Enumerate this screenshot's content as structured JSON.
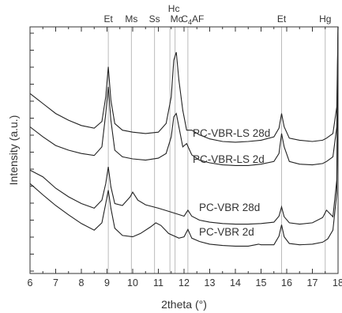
{
  "chart_data": {
    "type": "line",
    "xlabel": "2theta (°)",
    "ylabel": "Intensity (a.u.)",
    "xlim": [
      6,
      18
    ],
    "x_ticks": [
      "6",
      "7",
      "8",
      "9",
      "10",
      "11",
      "12",
      "13",
      "14",
      "15",
      "16",
      "17",
      "18"
    ],
    "grid": false,
    "legend": "none",
    "colors": {
      "axis": "#333333",
      "curve": "#222222",
      "reference_line": "#bbbbbb"
    },
    "reference_lines": [
      {
        "label": "Et",
        "x": 9.05
      },
      {
        "label": "Ms",
        "x": 9.95
      },
      {
        "label": "Ss",
        "x": 10.85
      },
      {
        "label": "Hc",
        "x": 11.45
      },
      {
        "label": "Mc",
        "x": 11.65
      },
      {
        "label": "C4AF",
        "x": 12.15
      },
      {
        "label": "Et",
        "x": 15.8
      },
      {
        "label": "Hg",
        "x": 17.5
      }
    ],
    "series": [
      {
        "name": "PC-VBR-LS 28d",
        "x": [
          6,
          6.5,
          7,
          7.5,
          8,
          8.5,
          8.8,
          8.95,
          9.05,
          9.15,
          9.3,
          9.6,
          10,
          10.5,
          11,
          11.3,
          11.5,
          11.6,
          11.7,
          11.8,
          11.95,
          12.1,
          12.3,
          12.6,
          13,
          13.5,
          14,
          14.5,
          15,
          15.5,
          15.7,
          15.8,
          15.9,
          16.1,
          16.5,
          17,
          17.4,
          17.55,
          17.8,
          17.95,
          18
        ],
        "y": [
          35,
          33.5,
          32,
          31,
          30.2,
          29.8,
          30.8,
          34.5,
          39,
          34,
          30.5,
          29.5,
          29.2,
          29,
          29.2,
          30.5,
          34.5,
          40,
          41.2,
          37,
          32.5,
          29.5,
          29.5,
          28.8,
          28.2,
          27.8,
          27.7,
          27.8,
          28,
          28.5,
          29.8,
          32,
          30,
          28.3,
          28,
          27.8,
          28,
          28.3,
          29,
          33,
          45
        ]
      },
      {
        "name": "PC-VBR-LS 2d",
        "x": [
          6,
          6.5,
          7,
          7.5,
          8,
          8.5,
          8.8,
          8.95,
          9.05,
          9.15,
          9.3,
          9.6,
          10,
          10.5,
          11,
          11.3,
          11.5,
          11.6,
          11.7,
          11.8,
          11.95,
          12.1,
          12.3,
          12.6,
          13,
          13.5,
          14,
          14.5,
          15,
          15.5,
          15.7,
          15.8,
          15.9,
          16.1,
          16.5,
          17,
          17.4,
          17.55,
          17.8,
          17.95,
          18
        ],
        "y": [
          30,
          28.5,
          27.2,
          26.5,
          26,
          25.7,
          27,
          32,
          36,
          31,
          26.5,
          25.5,
          25.2,
          25,
          25.3,
          26,
          28.5,
          31.5,
          32,
          30,
          27,
          27.5,
          25.8,
          25,
          24.6,
          24.3,
          24.2,
          24.2,
          24.4,
          24.8,
          26,
          29,
          27,
          24.8,
          24.4,
          24.3,
          24.5,
          24.8,
          25.5,
          30,
          45
        ]
      },
      {
        "name": "PC-VBR 28d",
        "x": [
          6,
          6.5,
          7,
          7.5,
          8,
          8.5,
          8.8,
          8.95,
          9.05,
          9.15,
          9.3,
          9.6,
          9.9,
          10,
          10.2,
          10.5,
          11,
          11.5,
          12,
          12.15,
          12.3,
          12.6,
          13,
          13.5,
          14,
          14.5,
          15,
          15.5,
          15.7,
          15.8,
          15.9,
          16.1,
          16.5,
          17,
          17.4,
          17.55,
          17.8,
          17.95,
          18
        ],
        "y": [
          23.5,
          22.5,
          20.8,
          19.5,
          18.5,
          17.8,
          19,
          21.5,
          24,
          21,
          18.5,
          18.2,
          19.5,
          20.2,
          19,
          18.3,
          17.8,
          17.2,
          16.6,
          17.5,
          16.6,
          16,
          15.7,
          15.5,
          15.4,
          15.4,
          15.5,
          15.7,
          16.6,
          18,
          16.5,
          15.6,
          15.4,
          15.6,
          16.4,
          17.5,
          16.5,
          22,
          45
        ]
      },
      {
        "name": "PC-VBR 2d",
        "x": [
          6,
          6.5,
          7,
          7.5,
          8,
          8.5,
          8.8,
          8.95,
          9.05,
          9.15,
          9.3,
          9.6,
          10,
          10.3,
          10.7,
          10.9,
          11.1,
          11.4,
          11.8,
          12,
          12.15,
          12.3,
          12.6,
          13,
          13.5,
          14,
          14.5,
          14.9,
          15,
          15.5,
          15.7,
          15.8,
          15.9,
          16.1,
          16.5,
          17,
          17.4,
          17.6,
          17.8,
          17.95,
          18
        ],
        "y": [
          21.5,
          19.8,
          18.2,
          16.8,
          15.5,
          14.5,
          15.6,
          18.5,
          20.5,
          17.8,
          14.8,
          13.7,
          13.5,
          14,
          15,
          15.6,
          15.2,
          14,
          13.3,
          13.5,
          14.6,
          13.3,
          12.8,
          12.4,
          12.2,
          12.1,
          12.1,
          12.4,
          12.3,
          12.3,
          13.6,
          15.3,
          13.5,
          12.5,
          12.3,
          12.4,
          12.7,
          13.2,
          14.5,
          20,
          45
        ]
      }
    ]
  }
}
